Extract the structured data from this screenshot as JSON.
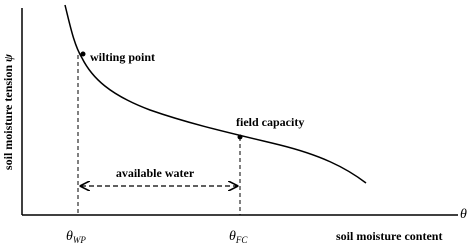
{
  "axes": {
    "y_label": {
      "text": "soil moisture tension",
      "symbol": "ψ"
    },
    "x_label": "soil moisture content",
    "x_symbol": "θ"
  },
  "points": [
    {
      "label": "wilting point",
      "symbol": "θ",
      "subscript": "WP"
    },
    {
      "label": "field capacity",
      "symbol": "θ",
      "subscript": "FC"
    }
  ],
  "range_label": "available water"
}
